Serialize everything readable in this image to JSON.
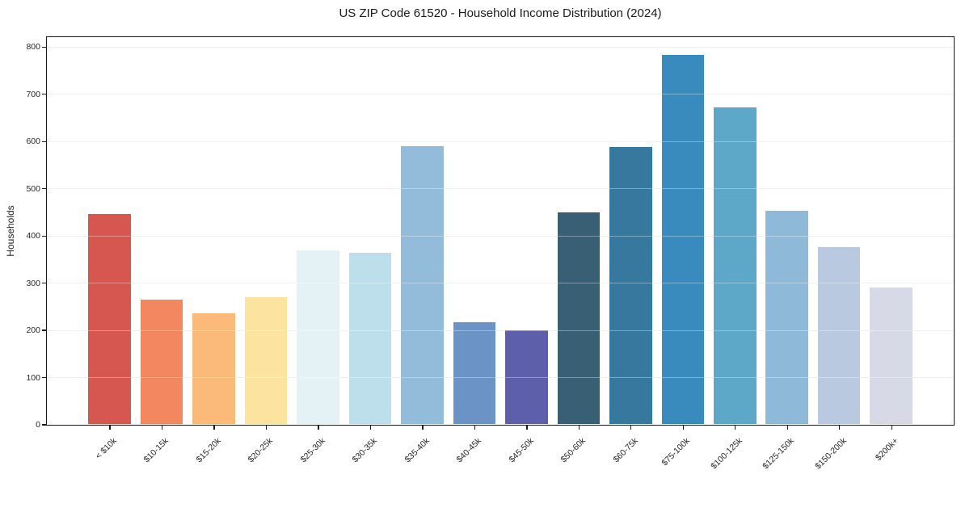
{
  "figure": {
    "title": "US ZIP Code 61520 - Household Income Distribution (2024)"
  },
  "chart_data": {
    "type": "bar",
    "title": "US ZIP Code 61520 - Household Income Distribution (2024)",
    "xlabel": "",
    "ylabel": "Households",
    "categories": [
      "< $10k",
      "$10-15k",
      "$15-20k",
      "$20-25k",
      "$25-30k",
      "$30-35k",
      "$35-40k",
      "$40-45k",
      "$45-50k",
      "$50-60k",
      "$60-75k",
      "$75-100k",
      "$100-125k",
      "$125-150k",
      "$150-200k",
      "$200k+"
    ],
    "values": [
      446,
      265,
      235,
      270,
      368,
      363,
      589,
      217,
      200,
      449,
      588,
      783,
      672,
      452,
      375,
      290
    ],
    "bar_colors": [
      "#d6574f",
      "#f3875f",
      "#fbba7a",
      "#fde3a0",
      "#e4f2f6",
      "#bcdfeb",
      "#93bcdb",
      "#6b93c5",
      "#5d5fab",
      "#395f75",
      "#37789f",
      "#398abd",
      "#5da7c9",
      "#8fb9d8",
      "#b9c9e0",
      "#d7d9e6"
    ],
    "yticks": [
      0,
      100,
      200,
      300,
      400,
      500,
      600,
      700,
      800
    ],
    "ylim": [
      0,
      820
    ],
    "grid": "horizontal",
    "legend": "none",
    "xtick_rotation_deg": 45
  }
}
